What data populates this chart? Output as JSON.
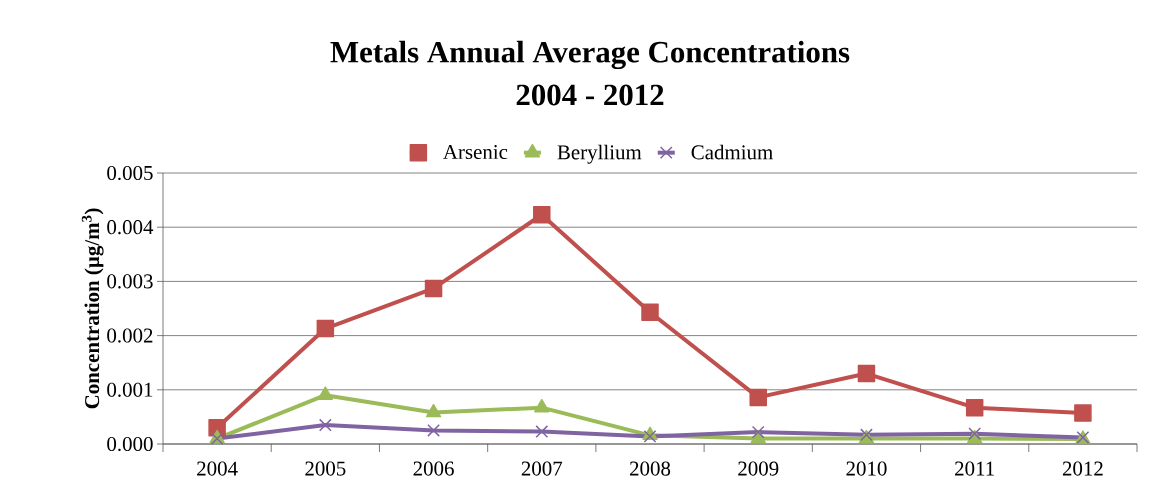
{
  "chart_data": {
    "type": "line",
    "title": "Metals Annual Average Concentrations",
    "subtitle": "2004 - 2012",
    "ylabel": "Concentration (µg/m$^{3}$)",
    "categories": [
      "2004",
      "2005",
      "2006",
      "2007",
      "2008",
      "2009",
      "2010",
      "2011",
      "2012"
    ],
    "series": [
      {
        "name": "Arsenic",
        "color": "#c0504d",
        "marker": "square",
        "values": [
          0.0003,
          0.00213,
          0.00287,
          0.00423,
          0.00243,
          0.00086,
          0.0013,
          0.00067,
          0.00057
        ]
      },
      {
        "name": "Beryllium",
        "color": "#9bbb59",
        "marker": "triangle",
        "values": [
          0.0001,
          0.0009,
          0.00058,
          0.00067,
          0.00016,
          0.0001,
          0.0001,
          0.0001,
          9e-05
        ]
      },
      {
        "name": "Cadmium",
        "color": "#8064a2",
        "marker": "cross",
        "values": [
          0.0001,
          0.00035,
          0.00025,
          0.00023,
          0.00014,
          0.00022,
          0.00017,
          0.00019,
          0.00012
        ]
      }
    ],
    "ylim": [
      0,
      0.005
    ],
    "yticks": [
      {
        "value": 0,
        "label": "0.000"
      },
      {
        "value": 0.001,
        "label": "0.001"
      },
      {
        "value": 0.002,
        "label": "0.002"
      },
      {
        "value": 0.003,
        "label": "0.003"
      },
      {
        "value": 0.004,
        "label": "0.004"
      },
      {
        "value": 0.005,
        "label": "0.005"
      }
    ],
    "grid": "y",
    "legend": "top",
    "line_style": "solid"
  }
}
